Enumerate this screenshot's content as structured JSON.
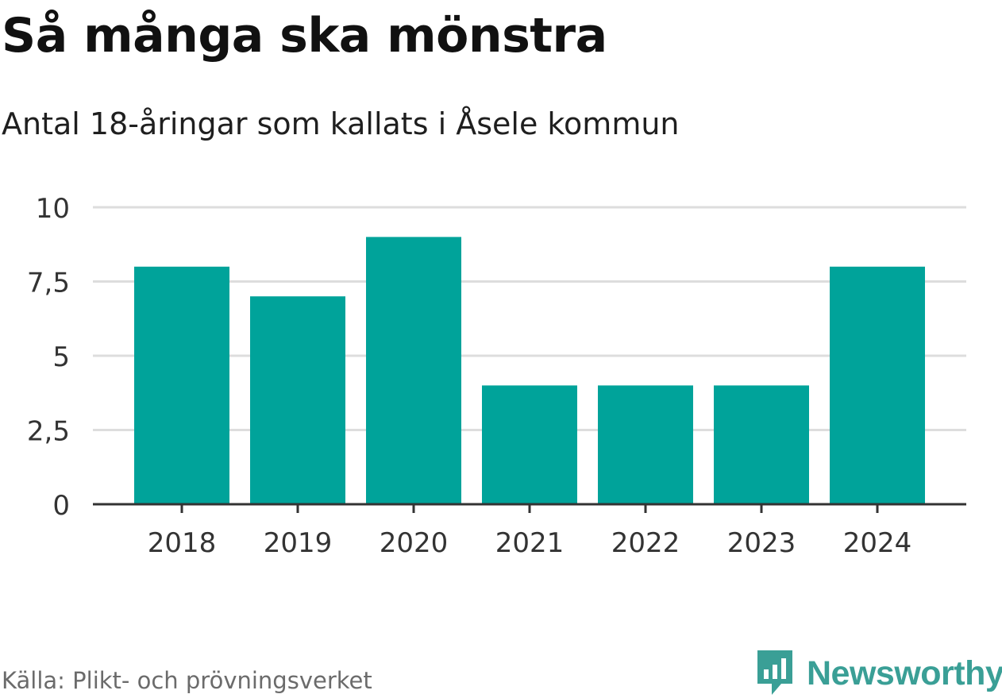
{
  "title": "Så många ska mönstra",
  "subtitle": "Antal 18-åringar som kallats i Åsele kommun",
  "source": "Källa: Plikt- och prövningsverket",
  "brand": {
    "name": "Newsworthy",
    "icon": "newsworthy-logo-icon",
    "color": "#3a9f96"
  },
  "chart_data": {
    "type": "bar",
    "categories": [
      "2018",
      "2019",
      "2020",
      "2021",
      "2022",
      "2023",
      "2024"
    ],
    "values": [
      8,
      7,
      9,
      4,
      4,
      4,
      8
    ],
    "ylim": [
      0,
      10
    ],
    "yticks": [
      0,
      2.5,
      5,
      7.5,
      10
    ],
    "ytick_labels": [
      "0",
      "2,5",
      "5",
      "7,5",
      "10"
    ],
    "bar_color": "#00a39a",
    "grid": true,
    "legend": "none"
  }
}
